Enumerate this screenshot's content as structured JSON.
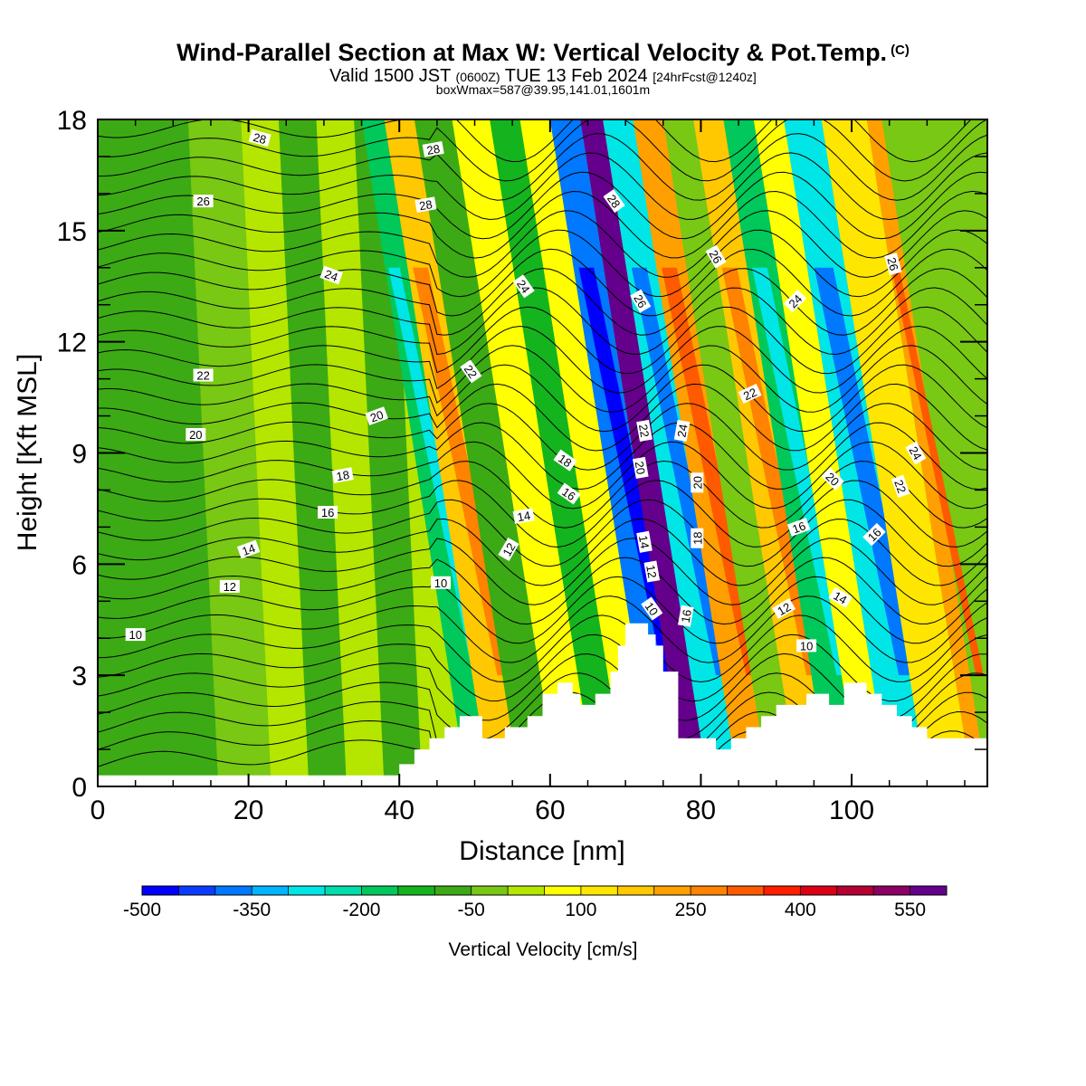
{
  "header": {
    "title": "Wind-Parallel Section at Max W: Vertical Velocity & Pot.Temp.",
    "copyright": "(C)",
    "subtitle_pre": "Valid 1500 JST",
    "subtitle_utc": "(0600Z)",
    "subtitle_mid": "TUE 13 Feb 2024",
    "subtitle_run": "[24hrFcst@1240z]",
    "subtitle2": "boxWmax=587@39.95,141.01,1601m"
  },
  "chart_data": {
    "type": "heatmap",
    "xlabel": "Distance [nm]",
    "ylabel": "Height [Kft MSL]",
    "xlim": [
      0,
      118
    ],
    "ylim": [
      0,
      18
    ],
    "x_ticks": [
      0,
      20,
      40,
      60,
      80,
      100
    ],
    "y_ticks": [
      0,
      3,
      6,
      9,
      12,
      15,
      18
    ],
    "colorbar": {
      "label": "Vertical Velocity [cm/s]",
      "tick_labels": [
        "-500",
        "-350",
        "-200",
        "-50",
        "100",
        "250",
        "400",
        "550"
      ],
      "range": [
        -500,
        600
      ],
      "step": 50,
      "colors": [
        "#0000ff",
        "#0a3cff",
        "#0078ff",
        "#00b4ff",
        "#00e6e6",
        "#00dcaa",
        "#00c85a",
        "#14b41e",
        "#3caa14",
        "#78c814",
        "#b4e600",
        "#ffff00",
        "#ffe600",
        "#ffc800",
        "#ffa000",
        "#ff8200",
        "#ff5a00",
        "#ff1e00",
        "#dc0014",
        "#b40032",
        "#8c0064",
        "#64008c"
      ]
    },
    "background_value": -20,
    "shading": [
      {
        "x": 0,
        "y0": 0,
        "y1": 18,
        "value": -60
      },
      {
        "x": 16,
        "y0": 0,
        "y1": 18,
        "value": -20
      },
      {
        "x": 23,
        "y0": 0,
        "y1": 18,
        "value": 40
      },
      {
        "x": 28,
        "y0": 0,
        "y1": 18,
        "value": -70
      },
      {
        "x": 33,
        "y0": 0,
        "y1": 18,
        "value": 30
      },
      {
        "x": 38,
        "y0": 0,
        "y1": 18,
        "value": -60
      },
      {
        "x": 43,
        "y0": 0,
        "y1": 18,
        "value": 30
      },
      {
        "x": 49,
        "y0": 0,
        "y1": 18,
        "value": -160
      },
      {
        "x": 52,
        "y0": 0,
        "y1": 18,
        "value": 160
      },
      {
        "x": 56,
        "y0": 0,
        "y1": 18,
        "value": -60
      },
      {
        "x": 61,
        "y0": 0,
        "y1": 18,
        "value": 70
      },
      {
        "x": 66,
        "y0": 0,
        "y1": 18,
        "value": -120
      },
      {
        "x": 70,
        "y0": 0,
        "y1": 18,
        "value": 80
      },
      {
        "x": 74,
        "y0": 0,
        "y1": 18,
        "value": -380
      },
      {
        "x": 78,
        "y0": 0,
        "y1": 18,
        "value": 560
      },
      {
        "x": 81,
        "y0": 0,
        "y1": 18,
        "value": -260
      },
      {
        "x": 85,
        "y0": 0,
        "y1": 18,
        "value": 200
      },
      {
        "x": 89,
        "y0": 0,
        "y1": 18,
        "value": -40
      },
      {
        "x": 93,
        "y0": 0,
        "y1": 18,
        "value": 150
      },
      {
        "x": 97,
        "y0": 0,
        "y1": 18,
        "value": -160
      },
      {
        "x": 101,
        "y0": 0,
        "y1": 18,
        "value": 60
      },
      {
        "x": 105,
        "y0": 0,
        "y1": 18,
        "value": -260
      },
      {
        "x": 110,
        "y0": 0,
        "y1": 18,
        "value": 120
      },
      {
        "x": 116,
        "y0": 0,
        "y1": 18,
        "value": 220
      }
    ],
    "terrain": [
      [
        0,
        0.3
      ],
      [
        40,
        0.3
      ],
      [
        40,
        0.6
      ],
      [
        42,
        0.6
      ],
      [
        42,
        1.0
      ],
      [
        44,
        1.0
      ],
      [
        44,
        1.3
      ],
      [
        46,
        1.3
      ],
      [
        46,
        1.6
      ],
      [
        48,
        1.6
      ],
      [
        48,
        1.9
      ],
      [
        51,
        1.9
      ],
      [
        51,
        1.3
      ],
      [
        54,
        1.3
      ],
      [
        54,
        1.6
      ],
      [
        57,
        1.6
      ],
      [
        57,
        1.9
      ],
      [
        59,
        1.9
      ],
      [
        59,
        2.5
      ],
      [
        61,
        2.5
      ],
      [
        61,
        2.8
      ],
      [
        63,
        2.8
      ],
      [
        63,
        2.5
      ],
      [
        64,
        2.5
      ],
      [
        64,
        2.2
      ],
      [
        66,
        2.2
      ],
      [
        66,
        2.5
      ],
      [
        68,
        2.5
      ],
      [
        68,
        3.1
      ],
      [
        69,
        3.1
      ],
      [
        69,
        3.8
      ],
      [
        70,
        3.8
      ],
      [
        70,
        4.4
      ],
      [
        73,
        4.4
      ],
      [
        73,
        4.1
      ],
      [
        74,
        4.1
      ],
      [
        74,
        3.8
      ],
      [
        75,
        3.8
      ],
      [
        75,
        3.1
      ],
      [
        77,
        3.1
      ],
      [
        77,
        1.3
      ],
      [
        82,
        1.3
      ],
      [
        82,
        1.0
      ],
      [
        84,
        1.0
      ],
      [
        84,
        1.3
      ],
      [
        86,
        1.3
      ],
      [
        86,
        1.6
      ],
      [
        88,
        1.6
      ],
      [
        88,
        1.9
      ],
      [
        90,
        1.9
      ],
      [
        90,
        2.2
      ],
      [
        94,
        2.2
      ],
      [
        94,
        2.5
      ],
      [
        97,
        2.5
      ],
      [
        97,
        2.2
      ],
      [
        99,
        2.2
      ],
      [
        99,
        2.8
      ],
      [
        102,
        2.8
      ],
      [
        102,
        2.5
      ],
      [
        104,
        2.5
      ],
      [
        104,
        2.2
      ],
      [
        106,
        2.2
      ],
      [
        106,
        1.9
      ],
      [
        108,
        1.9
      ],
      [
        108,
        1.6
      ],
      [
        110,
        1.6
      ],
      [
        110,
        1.3
      ],
      [
        118,
        1.3
      ]
    ],
    "theta_contours": {
      "levels": [
        10,
        12,
        14,
        16,
        18,
        20,
        22,
        24,
        26,
        28
      ],
      "labels": [
        {
          "text": "10",
          "x": 5,
          "y": 4.1,
          "angle": 0
        },
        {
          "text": "12",
          "x": 17.5,
          "y": 5.4,
          "angle": 0
        },
        {
          "text": "14",
          "x": 20,
          "y": 6.4,
          "angle": -20
        },
        {
          "text": "16",
          "x": 30.5,
          "y": 7.4,
          "angle": 0
        },
        {
          "text": "18",
          "x": 32.5,
          "y": 8.4,
          "angle": -10
        },
        {
          "text": "20",
          "x": 13,
          "y": 9.5,
          "angle": 0
        },
        {
          "text": "20",
          "x": 37,
          "y": 10.0,
          "angle": -20
        },
        {
          "text": "22",
          "x": 14,
          "y": 11.1,
          "angle": 0
        },
        {
          "text": "24",
          "x": 31,
          "y": 13.8,
          "angle": 20
        },
        {
          "text": "26",
          "x": 14,
          "y": 15.8,
          "angle": 0
        },
        {
          "text": "28",
          "x": 21.5,
          "y": 17.5,
          "angle": 15
        },
        {
          "text": "28",
          "x": 44.5,
          "y": 17.2,
          "angle": -10
        },
        {
          "text": "28",
          "x": 43.5,
          "y": 15.7,
          "angle": -10
        },
        {
          "text": "10",
          "x": 45.5,
          "y": 5.5,
          "angle": 0
        },
        {
          "text": "12",
          "x": 54.5,
          "y": 6.4,
          "angle": -60
        },
        {
          "text": "14",
          "x": 56.5,
          "y": 7.3,
          "angle": -10
        },
        {
          "text": "16",
          "x": 62.5,
          "y": 7.9,
          "angle": 35
        },
        {
          "text": "18",
          "x": 62,
          "y": 8.8,
          "angle": 35
        },
        {
          "text": "22",
          "x": 49.5,
          "y": 11.2,
          "angle": 55
        },
        {
          "text": "24",
          "x": 56.5,
          "y": 13.5,
          "angle": 55
        },
        {
          "text": "28",
          "x": 68.5,
          "y": 15.8,
          "angle": 55
        },
        {
          "text": "26",
          "x": 72,
          "y": 13.1,
          "angle": 60
        },
        {
          "text": "22",
          "x": 72.5,
          "y": 9.6,
          "angle": 80
        },
        {
          "text": "20",
          "x": 72,
          "y": 8.6,
          "angle": 80
        },
        {
          "text": "14",
          "x": 72.5,
          "y": 6.6,
          "angle": 80
        },
        {
          "text": "12",
          "x": 73.5,
          "y": 5.8,
          "angle": 80
        },
        {
          "text": "10",
          "x": 73.5,
          "y": 4.8,
          "angle": 55
        },
        {
          "text": "24",
          "x": 77.5,
          "y": 9.6,
          "angle": -80
        },
        {
          "text": "20",
          "x": 79.5,
          "y": 8.2,
          "angle": -90
        },
        {
          "text": "18",
          "x": 79.5,
          "y": 6.7,
          "angle": -90
        },
        {
          "text": "16",
          "x": 78,
          "y": 4.6,
          "angle": -80
        },
        {
          "text": "26",
          "x": 82,
          "y": 14.3,
          "angle": 60
        },
        {
          "text": "22",
          "x": 86.5,
          "y": 10.6,
          "angle": -25
        },
        {
          "text": "24",
          "x": 92.5,
          "y": 13.1,
          "angle": -45
        },
        {
          "text": "20",
          "x": 97.5,
          "y": 8.3,
          "angle": 45
        },
        {
          "text": "16",
          "x": 93,
          "y": 7.0,
          "angle": -20
        },
        {
          "text": "12",
          "x": 91,
          "y": 4.8,
          "angle": -30
        },
        {
          "text": "10",
          "x": 94,
          "y": 3.8,
          "angle": 0
        },
        {
          "text": "14",
          "x": 98.5,
          "y": 5.1,
          "angle": 30
        },
        {
          "text": "16",
          "x": 103,
          "y": 6.8,
          "angle": -45
        },
        {
          "text": "26",
          "x": 105.5,
          "y": 14.1,
          "angle": 75
        },
        {
          "text": "24",
          "x": 108.5,
          "y": 9.0,
          "angle": 60
        },
        {
          "text": "22",
          "x": 106.5,
          "y": 8.1,
          "angle": 70
        }
      ]
    }
  }
}
